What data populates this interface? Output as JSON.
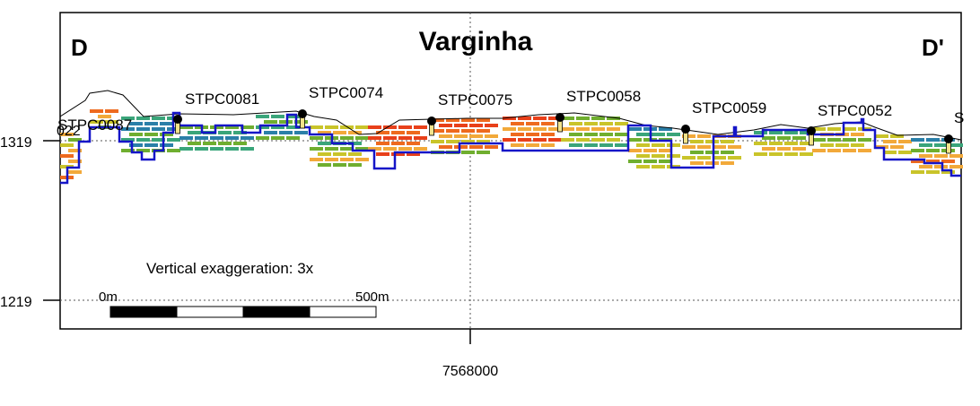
{
  "section": {
    "title": "Varginha",
    "left_label": "D",
    "right_label": "D'",
    "exaggeration_text": "Vertical exaggeration: 3x",
    "scale_start": "0m",
    "scale_end": "500m",
    "y_ticks": [
      "1319",
      "1219"
    ],
    "x_tick": "7568000",
    "wells": [
      {
        "name": "STPC0087"
      },
      {
        "name": "STPC0081"
      },
      {
        "name": "STPC0074"
      },
      {
        "name": "STPC0075"
      },
      {
        "name": "STPC0058"
      },
      {
        "name": "STPC0059"
      },
      {
        "name": "STPC0052"
      },
      {
        "name": "S"
      }
    ],
    "clipped_label": "022",
    "colors": {
      "frame": "#000000",
      "grid": "#555555",
      "water_table": "#1515c8",
      "topography": "#000000",
      "layers": [
        "#2a7fa8",
        "#3aa57a",
        "#6fae2f",
        "#c9c42a",
        "#f2a93a",
        "#ee6a1e",
        "#e8401a"
      ]
    }
  }
}
